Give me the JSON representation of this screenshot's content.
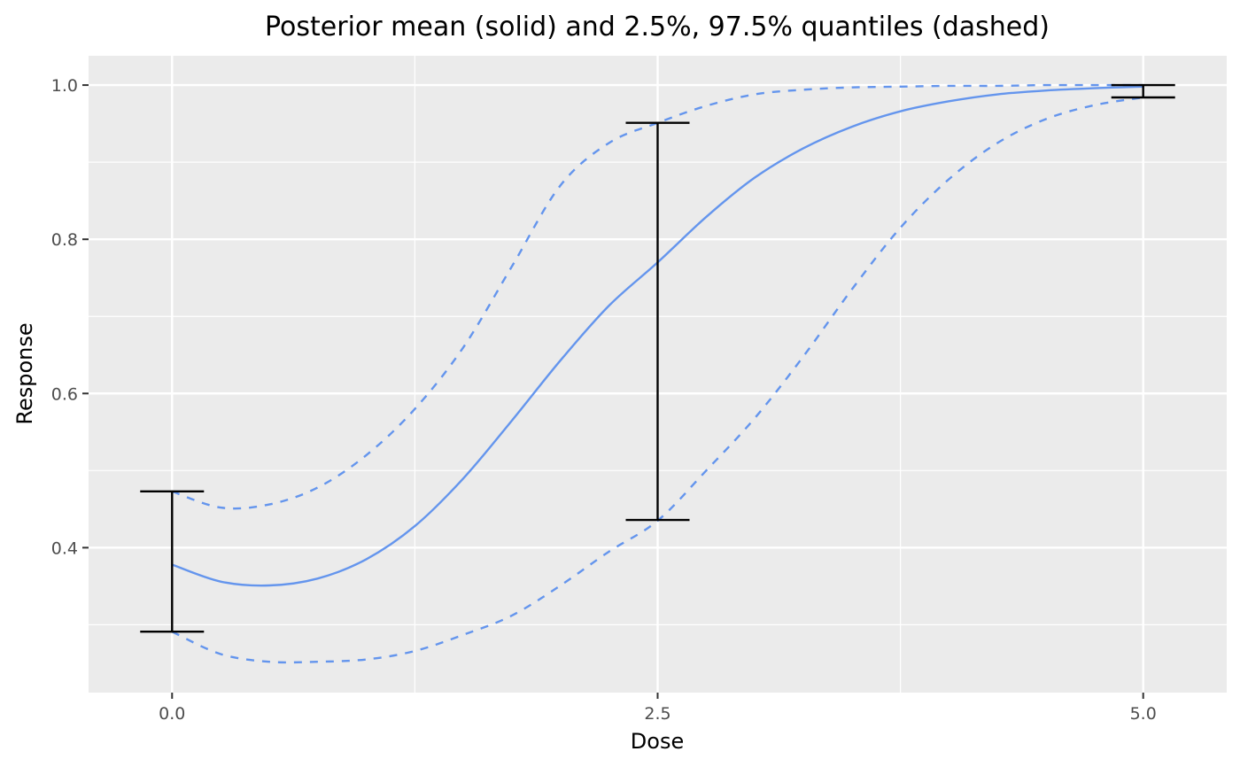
{
  "chart_data": {
    "type": "line",
    "title": "Posterior mean (solid) and 2.5%, 97.5% quantiles (dashed)",
    "xlabel": "Dose",
    "ylabel": "Response",
    "xlim": [
      -0.43,
      5.43
    ],
    "ylim": [
      0.212,
      1.038
    ],
    "grid": true,
    "x_ticks": [
      0.0,
      2.5,
      5.0
    ],
    "x_tick_labels": [
      "0.0",
      "2.5",
      "5.0"
    ],
    "y_ticks": [
      0.4,
      0.6,
      0.8,
      1.0
    ],
    "y_tick_labels": [
      "0.4",
      "0.6",
      "0.8",
      "1.0"
    ],
    "series": [
      {
        "style": "solid",
        "color": "#6495ed",
        "x": [
          0.0,
          0.25,
          0.5,
          0.75,
          1.0,
          1.25,
          1.5,
          1.75,
          2.0,
          2.25,
          2.5,
          2.75,
          3.0,
          3.25,
          3.5,
          3.75,
          4.0,
          4.25,
          4.5,
          4.75,
          5.0
        ],
        "y": [
          0.378,
          0.356,
          0.351,
          0.36,
          0.385,
          0.428,
          0.49,
          0.565,
          0.643,
          0.714,
          0.77,
          0.829,
          0.88,
          0.918,
          0.946,
          0.966,
          0.979,
          0.988,
          0.993,
          0.996,
          0.998
        ]
      },
      {
        "style": "dashed",
        "color": "#6495ed",
        "x": [
          0.0,
          0.25,
          0.5,
          0.75,
          1.0,
          1.25,
          1.5,
          1.75,
          2.0,
          2.25,
          2.5,
          2.75,
          3.0,
          3.25,
          3.5,
          3.75,
          4.0,
          4.25,
          4.5,
          4.75,
          5.0
        ],
        "y": [
          0.473,
          0.452,
          0.456,
          0.478,
          0.52,
          0.58,
          0.66,
          0.765,
          0.87,
          0.925,
          0.951,
          0.973,
          0.988,
          0.994,
          0.997,
          0.998,
          0.999,
          0.999,
          1.0,
          1.0,
          1.0
        ]
      },
      {
        "style": "dashed",
        "color": "#6495ed",
        "x": [
          0.0,
          0.25,
          0.5,
          0.75,
          1.0,
          1.25,
          1.5,
          1.75,
          2.0,
          2.25,
          2.5,
          2.75,
          3.0,
          3.25,
          3.5,
          3.75,
          4.0,
          4.25,
          4.5,
          4.75,
          5.0
        ],
        "y": [
          0.291,
          0.262,
          0.252,
          0.252,
          0.255,
          0.266,
          0.287,
          0.312,
          0.351,
          0.395,
          0.435,
          0.5,
          0.568,
          0.648,
          0.735,
          0.815,
          0.878,
          0.925,
          0.956,
          0.974,
          0.984
        ]
      }
    ],
    "error_bars": [
      {
        "x": 0.0,
        "low": 0.291,
        "high": 0.473
      },
      {
        "x": 2.5,
        "low": 0.436,
        "high": 0.951
      },
      {
        "x": 5.0,
        "low": 0.984,
        "high": 1.0
      }
    ],
    "colors": {
      "panel_background": "#ebebeb",
      "grid": "#ffffff",
      "line": "#6495ed",
      "errorbar": "#000000"
    }
  }
}
